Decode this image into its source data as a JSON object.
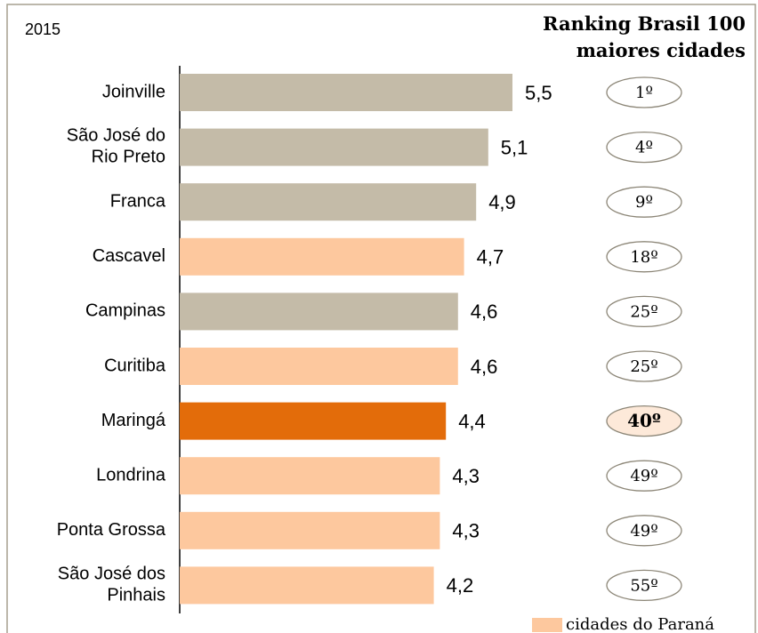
{
  "chart_data": {
    "type": "bar",
    "orientation": "horizontal",
    "year": "2015",
    "title": "Ranking Brasil 100\nmaiores cidades",
    "categories": [
      "Joinville",
      "São José do\nRio Preto",
      "Franca",
      "Cascavel",
      "Campinas",
      "Curitiba",
      "Maringá",
      "Londrina",
      "Ponta Grossa",
      "São José dos\nPinhais"
    ],
    "values": [
      5.5,
      5.1,
      4.9,
      4.7,
      4.6,
      4.6,
      4.4,
      4.3,
      4.3,
      4.2
    ],
    "value_labels": [
      "5,5",
      "5,1",
      "4,9",
      "4,7",
      "4,6",
      "4,6",
      "4,4",
      "4,3",
      "4,3",
      "4,2"
    ],
    "colors": [
      "#c4bba8",
      "#c4bba8",
      "#c4bba8",
      "#fdc89e",
      "#c4bba8",
      "#fdc89e",
      "#e36c0a",
      "#fdc89e",
      "#fdc89e",
      "#fdc89e"
    ],
    "rankings": [
      "1º",
      "4º",
      "9º",
      "18º",
      "25º",
      "25º",
      "40º",
      "49º",
      "49º",
      "55º"
    ],
    "highlight": "Maringá",
    "xlim": [
      0,
      6
    ],
    "legend": {
      "name": "cidades do Paraná",
      "color": "#fdc89e"
    }
  }
}
